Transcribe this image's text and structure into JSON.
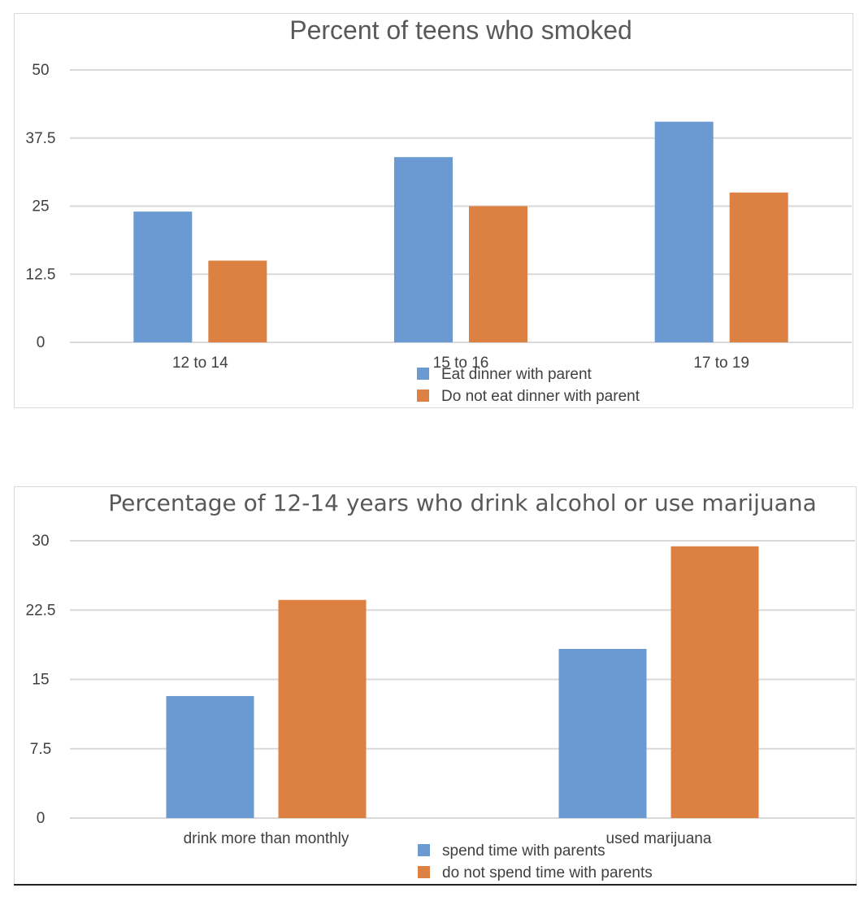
{
  "chart_data": [
    {
      "type": "bar",
      "title": "Percent of teens who smoked",
      "categories": [
        "12 to 14",
        "15 to 16",
        "17 to 19"
      ],
      "series": [
        {
          "name": "Eat dinner with parent",
          "values": [
            24,
            34,
            40.5
          ],
          "color": "#6a9ad1"
        },
        {
          "name": "Do not eat dinner with parent",
          "values": [
            15,
            25,
            27.5
          ],
          "color": "#dd8142"
        }
      ],
      "yticks": [
        "0",
        "12.5",
        "25",
        "37.5",
        "50"
      ],
      "ylim": [
        0,
        50
      ],
      "xlabel": "",
      "ylabel": "",
      "grid": true,
      "legend": "bottom"
    },
    {
      "type": "bar",
      "title": "Percentage of 12-14 years who drink alcohol or use marijuana",
      "categories": [
        "drink more than monthly",
        "used marijuana"
      ],
      "series": [
        {
          "name": "spend time with parents",
          "values": [
            13.2,
            18.3
          ],
          "color": "#6a9ad1"
        },
        {
          "name": "do not spend time with parents",
          "values": [
            23.6,
            29.4
          ],
          "color": "#dd8142"
        }
      ],
      "yticks": [
        "0",
        "7.5",
        "15",
        "22.5",
        "30"
      ],
      "ylim": [
        0,
        30
      ],
      "xlabel": "",
      "ylabel": "",
      "grid": true,
      "legend": "bottom"
    }
  ]
}
